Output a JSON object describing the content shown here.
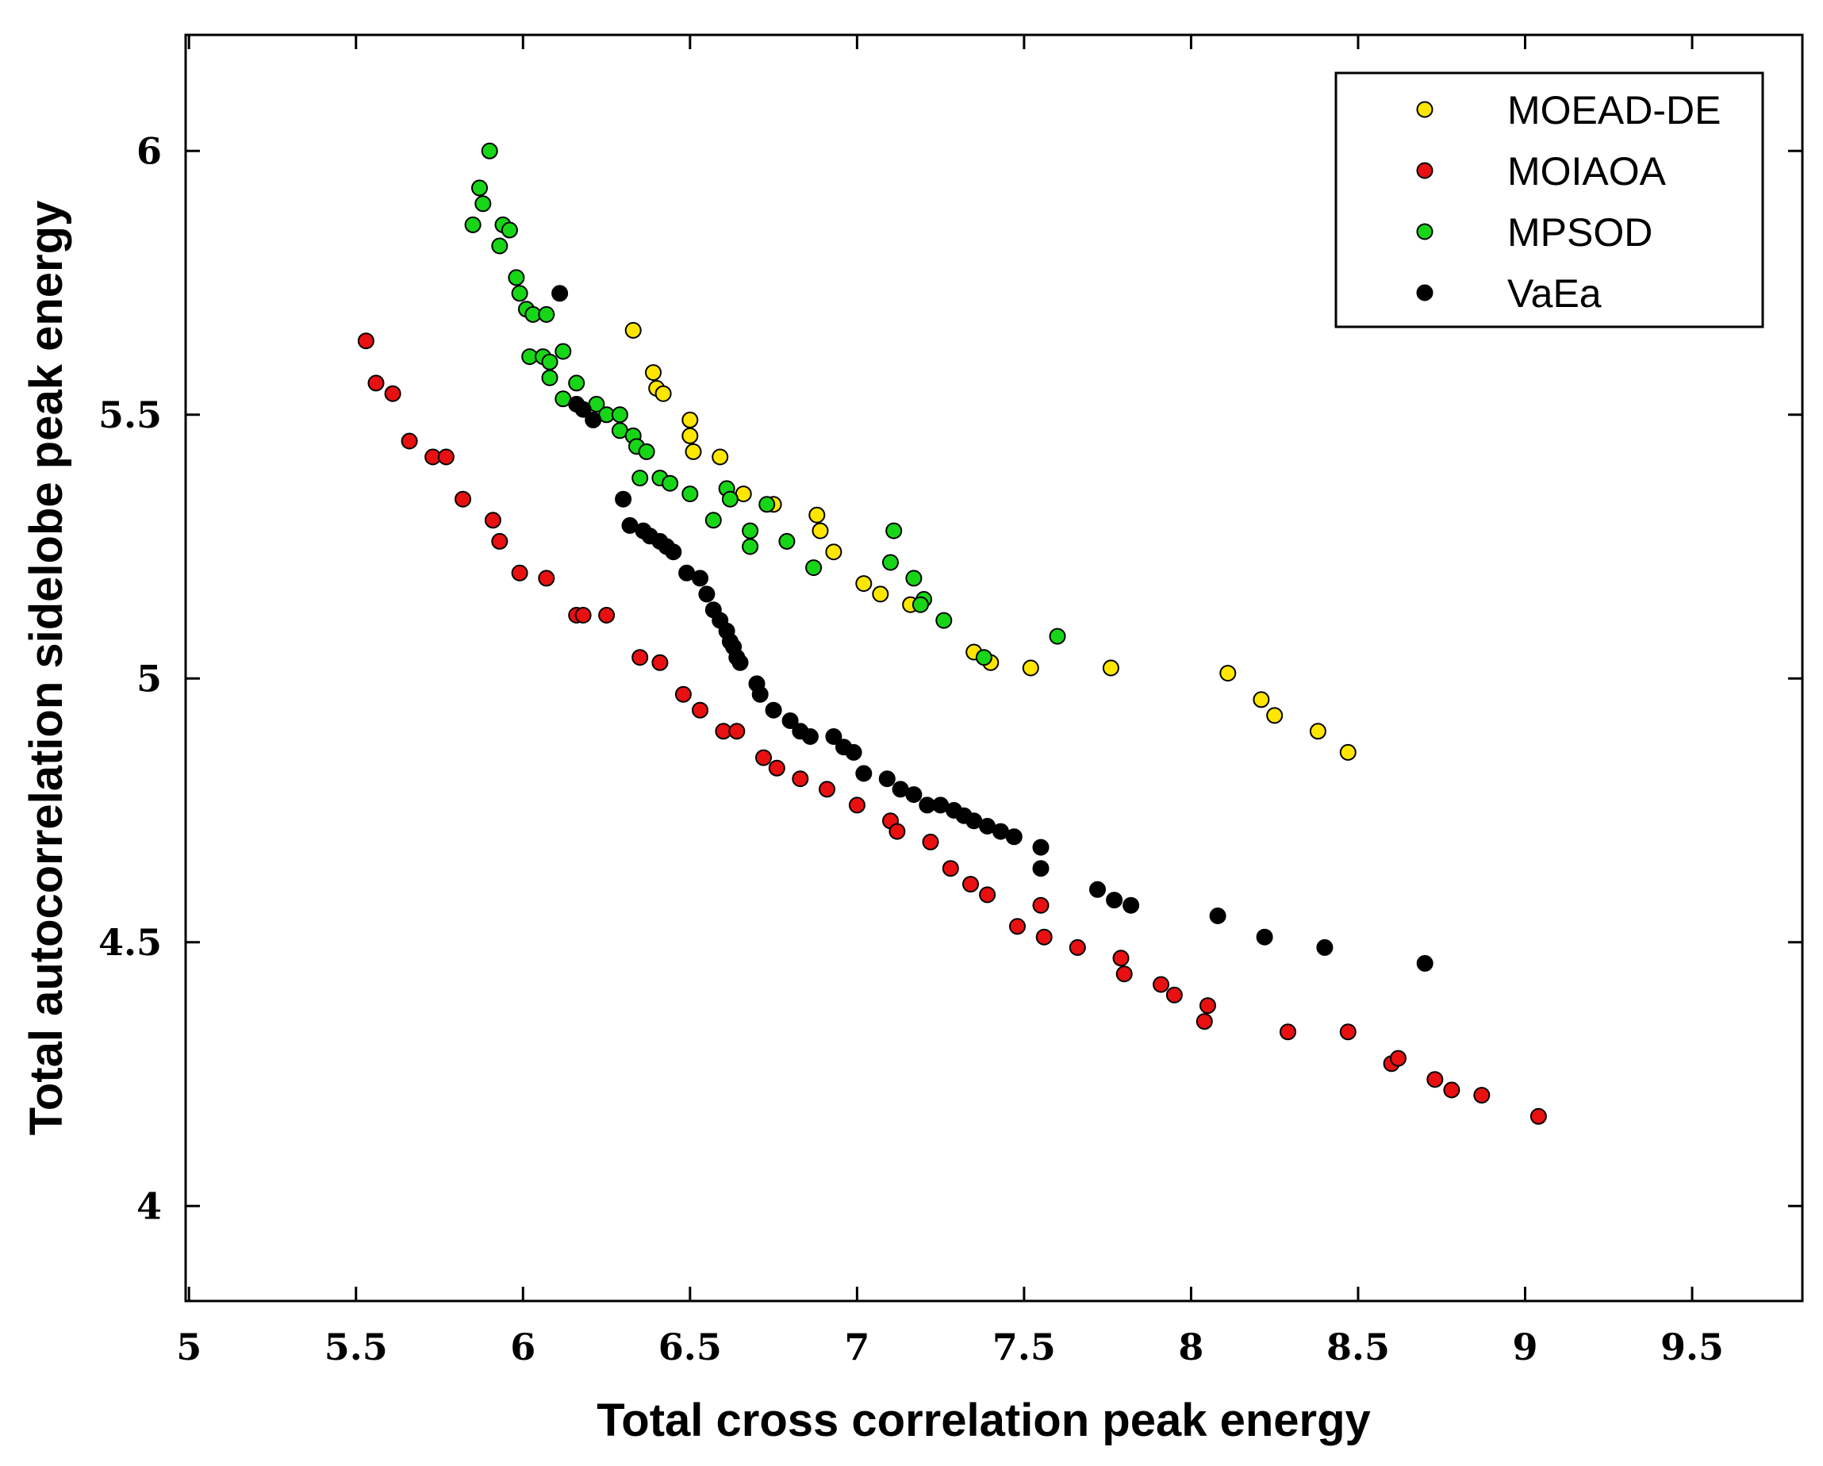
{
  "chart_data": {
    "type": "scatter",
    "title": "",
    "xlabel": "Total cross correlation peak energy",
    "ylabel": "Total autocorrelation sidelobe peak energy",
    "xlim": [
      4.99,
      9.83
    ],
    "ylim": [
      3.82,
      6.22
    ],
    "xticks": [
      5,
      5.5,
      6,
      6.5,
      7,
      7.5,
      8,
      8.5,
      9,
      9.5
    ],
    "xtick_labels": [
      "5",
      "5.5",
      "6",
      "6.5",
      "7",
      "7.5",
      "8",
      "8.5",
      "9",
      "9.5"
    ],
    "yticks": [
      4,
      4.5,
      5,
      5.5,
      6
    ],
    "ytick_labels": [
      "4",
      "4.5",
      "5",
      "5.5",
      "6"
    ],
    "grid": false,
    "legend_position": "top-right",
    "series": [
      {
        "name": "MOEAD-DE",
        "color": "#ffe600",
        "points": [
          [
            6.33,
            5.66
          ],
          [
            6.39,
            5.58
          ],
          [
            6.4,
            5.55
          ],
          [
            6.42,
            5.54
          ],
          [
            6.5,
            5.49
          ],
          [
            6.5,
            5.46
          ],
          [
            6.51,
            5.43
          ],
          [
            6.59,
            5.42
          ],
          [
            6.66,
            5.35
          ],
          [
            6.75,
            5.33
          ],
          [
            6.88,
            5.31
          ],
          [
            6.89,
            5.28
          ],
          [
            6.93,
            5.24
          ],
          [
            7.02,
            5.18
          ],
          [
            7.07,
            5.16
          ],
          [
            7.16,
            5.14
          ],
          [
            7.35,
            5.05
          ],
          [
            7.4,
            5.03
          ],
          [
            7.52,
            5.02
          ],
          [
            7.76,
            5.02
          ],
          [
            8.11,
            5.01
          ],
          [
            8.21,
            4.96
          ],
          [
            8.25,
            4.93
          ],
          [
            8.38,
            4.9
          ],
          [
            8.47,
            4.86
          ]
        ]
      },
      {
        "name": "MOIAOA",
        "color": "#e81010",
        "points": [
          [
            5.53,
            5.64
          ],
          [
            5.56,
            5.56
          ],
          [
            5.61,
            5.54
          ],
          [
            5.66,
            5.45
          ],
          [
            5.73,
            5.42
          ],
          [
            5.77,
            5.42
          ],
          [
            5.82,
            5.34
          ],
          [
            5.91,
            5.3
          ],
          [
            5.93,
            5.26
          ],
          [
            5.99,
            5.2
          ],
          [
            6.07,
            5.19
          ],
          [
            6.16,
            5.12
          ],
          [
            6.18,
            5.12
          ],
          [
            6.25,
            5.12
          ],
          [
            6.35,
            5.04
          ],
          [
            6.41,
            5.03
          ],
          [
            6.48,
            4.97
          ],
          [
            6.53,
            4.94
          ],
          [
            6.6,
            4.9
          ],
          [
            6.64,
            4.9
          ],
          [
            6.72,
            4.85
          ],
          [
            6.76,
            4.83
          ],
          [
            6.83,
            4.81
          ],
          [
            6.91,
            4.79
          ],
          [
            7.0,
            4.76
          ],
          [
            7.1,
            4.73
          ],
          [
            7.12,
            4.71
          ],
          [
            7.22,
            4.69
          ],
          [
            7.28,
            4.64
          ],
          [
            7.34,
            4.61
          ],
          [
            7.39,
            4.59
          ],
          [
            7.48,
            4.53
          ],
          [
            7.55,
            4.57
          ],
          [
            7.56,
            4.51
          ],
          [
            7.66,
            4.49
          ],
          [
            7.79,
            4.47
          ],
          [
            7.8,
            4.44
          ],
          [
            7.91,
            4.42
          ],
          [
            7.95,
            4.4
          ],
          [
            8.05,
            4.38
          ],
          [
            8.04,
            4.35
          ],
          [
            8.29,
            4.33
          ],
          [
            8.47,
            4.33
          ],
          [
            8.6,
            4.27
          ],
          [
            8.62,
            4.28
          ],
          [
            8.73,
            4.24
          ],
          [
            8.78,
            4.22
          ],
          [
            8.87,
            4.21
          ],
          [
            9.04,
            4.17
          ]
        ]
      },
      {
        "name": "MPSOD",
        "color": "#17d617",
        "points": [
          [
            5.9,
            6.0
          ],
          [
            5.87,
            5.93
          ],
          [
            5.88,
            5.9
          ],
          [
            5.85,
            5.86
          ],
          [
            5.94,
            5.86
          ],
          [
            5.96,
            5.85
          ],
          [
            5.93,
            5.82
          ],
          [
            5.98,
            5.76
          ],
          [
            5.99,
            5.73
          ],
          [
            6.01,
            5.7
          ],
          [
            6.03,
            5.69
          ],
          [
            6.07,
            5.69
          ],
          [
            6.12,
            5.62
          ],
          [
            6.02,
            5.61
          ],
          [
            6.06,
            5.61
          ],
          [
            6.08,
            5.6
          ],
          [
            6.08,
            5.57
          ],
          [
            6.16,
            5.56
          ],
          [
            6.12,
            5.53
          ],
          [
            6.22,
            5.52
          ],
          [
            6.25,
            5.5
          ],
          [
            6.29,
            5.5
          ],
          [
            6.29,
            5.47
          ],
          [
            6.33,
            5.46
          ],
          [
            6.34,
            5.44
          ],
          [
            6.37,
            5.43
          ],
          [
            6.35,
            5.38
          ],
          [
            6.41,
            5.38
          ],
          [
            6.44,
            5.37
          ],
          [
            6.5,
            5.35
          ],
          [
            6.61,
            5.36
          ],
          [
            6.62,
            5.34
          ],
          [
            6.57,
            5.3
          ],
          [
            6.73,
            5.33
          ],
          [
            6.68,
            5.28
          ],
          [
            6.68,
            5.25
          ],
          [
            6.79,
            5.26
          ],
          [
            6.87,
            5.21
          ],
          [
            7.11,
            5.28
          ],
          [
            7.1,
            5.22
          ],
          [
            7.17,
            5.19
          ],
          [
            7.2,
            5.15
          ],
          [
            7.19,
            5.14
          ],
          [
            7.26,
            5.11
          ],
          [
            7.38,
            5.04
          ],
          [
            7.6,
            5.08
          ]
        ]
      },
      {
        "name": "VaEa",
        "color": "#000000",
        "points": [
          [
            6.11,
            5.73
          ],
          [
            6.16,
            5.52
          ],
          [
            6.18,
            5.51
          ],
          [
            6.21,
            5.49
          ],
          [
            6.3,
            5.34
          ],
          [
            6.32,
            5.29
          ],
          [
            6.36,
            5.28
          ],
          [
            6.38,
            5.27
          ],
          [
            6.41,
            5.26
          ],
          [
            6.43,
            5.25
          ],
          [
            6.45,
            5.24
          ],
          [
            6.49,
            5.2
          ],
          [
            6.53,
            5.19
          ],
          [
            6.55,
            5.16
          ],
          [
            6.57,
            5.13
          ],
          [
            6.59,
            5.11
          ],
          [
            6.61,
            5.09
          ],
          [
            6.62,
            5.07
          ],
          [
            6.63,
            5.06
          ],
          [
            6.64,
            5.04
          ],
          [
            6.65,
            5.03
          ],
          [
            6.7,
            4.99
          ],
          [
            6.71,
            4.97
          ],
          [
            6.75,
            4.94
          ],
          [
            6.8,
            4.92
          ],
          [
            6.83,
            4.9
          ],
          [
            6.86,
            4.89
          ],
          [
            6.93,
            4.89
          ],
          [
            6.96,
            4.87
          ],
          [
            6.99,
            4.86
          ],
          [
            7.02,
            4.82
          ],
          [
            7.09,
            4.81
          ],
          [
            7.13,
            4.79
          ],
          [
            7.17,
            4.78
          ],
          [
            7.21,
            4.76
          ],
          [
            7.25,
            4.76
          ],
          [
            7.29,
            4.75
          ],
          [
            7.32,
            4.74
          ],
          [
            7.35,
            4.73
          ],
          [
            7.39,
            4.72
          ],
          [
            7.43,
            4.71
          ],
          [
            7.47,
            4.7
          ],
          [
            7.55,
            4.68
          ],
          [
            7.55,
            4.64
          ],
          [
            7.72,
            4.6
          ],
          [
            7.77,
            4.58
          ],
          [
            7.82,
            4.57
          ],
          [
            8.08,
            4.55
          ],
          [
            8.22,
            4.51
          ],
          [
            8.4,
            4.49
          ],
          [
            8.7,
            4.46
          ]
        ]
      }
    ]
  }
}
